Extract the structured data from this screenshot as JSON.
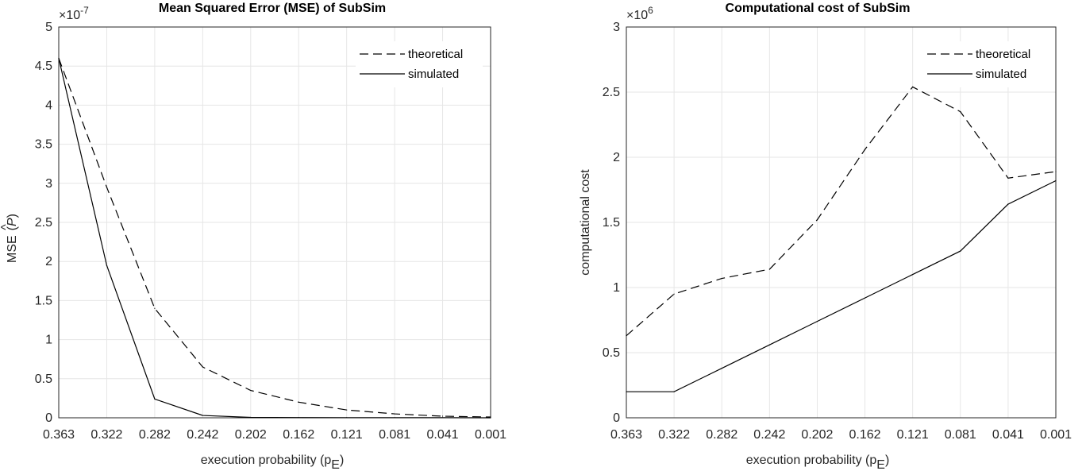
{
  "chart_data": [
    {
      "type": "line",
      "title": "Mean Squared Error (MSE) of SubSim",
      "xlabel": "execution probability (p",
      "xlabel_sub": "E",
      "xlabel_close": ")",
      "ylabel_main": "MSE",
      "ylabel_open": "(",
      "ylabel_var": "P",
      "ylabel_hat": "^",
      "ylabel_close": ")",
      "exponent_base": "×10",
      "exponent": "-7",
      "x_tick_labels": [
        "0.363",
        "0.322",
        "0.282",
        "0.242",
        "0.202",
        "0.162",
        "0.121",
        "0.081",
        "0.041",
        "0.001"
      ],
      "y_tick_labels": [
        "0",
        "0.5",
        "1",
        "1.5",
        "2",
        "2.5",
        "3",
        "3.5",
        "4",
        "4.5",
        "5"
      ],
      "x": [
        0.363,
        0.322,
        0.282,
        0.242,
        0.202,
        0.162,
        0.121,
        0.081,
        0.041,
        0.001
      ],
      "xlim": [
        0.363,
        0.001
      ],
      "ylim": [
        0,
        5
      ],
      "grid": true,
      "legend_position": "top-right",
      "series": [
        {
          "name": "theoretical",
          "style": "dashed",
          "color": "#000000",
          "values": [
            4.6,
            2.95,
            1.4,
            0.65,
            0.35,
            0.2,
            0.1,
            0.05,
            0.02,
            0.01
          ]
        },
        {
          "name": "simulated",
          "style": "solid",
          "color": "#000000",
          "values": [
            4.6,
            1.95,
            0.24,
            0.03,
            0.005,
            0.003,
            0.002,
            0.001,
            0.001,
            0.0
          ]
        }
      ]
    },
    {
      "type": "line",
      "title": "Computational cost of SubSim",
      "xlabel": "execution probability (p",
      "xlabel_sub": "E",
      "xlabel_close": ")",
      "ylabel": "computational cost",
      "exponent_base": "×10",
      "exponent": "6",
      "x_tick_labels": [
        "0.363",
        "0.322",
        "0.282",
        "0.242",
        "0.202",
        "0.162",
        "0.121",
        "0.081",
        "0.041",
        "0.001"
      ],
      "y_tick_labels": [
        "0",
        "0.5",
        "1",
        "1.5",
        "2",
        "2.5",
        "3"
      ],
      "x": [
        0.363,
        0.322,
        0.282,
        0.242,
        0.202,
        0.162,
        0.121,
        0.081,
        0.041,
        0.001
      ],
      "xlim": [
        0.363,
        0.001
      ],
      "ylim": [
        0,
        3
      ],
      "grid": true,
      "legend_position": "top-right",
      "series": [
        {
          "name": "theoretical",
          "style": "dashed",
          "color": "#000000",
          "values": [
            0.63,
            0.95,
            1.07,
            1.14,
            1.52,
            2.06,
            2.54,
            2.35,
            1.84,
            1.89
          ]
        },
        {
          "name": "simulated",
          "style": "solid",
          "color": "#000000",
          "values": [
            0.2,
            0.2,
            0.38,
            0.56,
            0.74,
            0.92,
            1.1,
            1.28,
            1.64,
            1.82
          ]
        }
      ]
    }
  ]
}
